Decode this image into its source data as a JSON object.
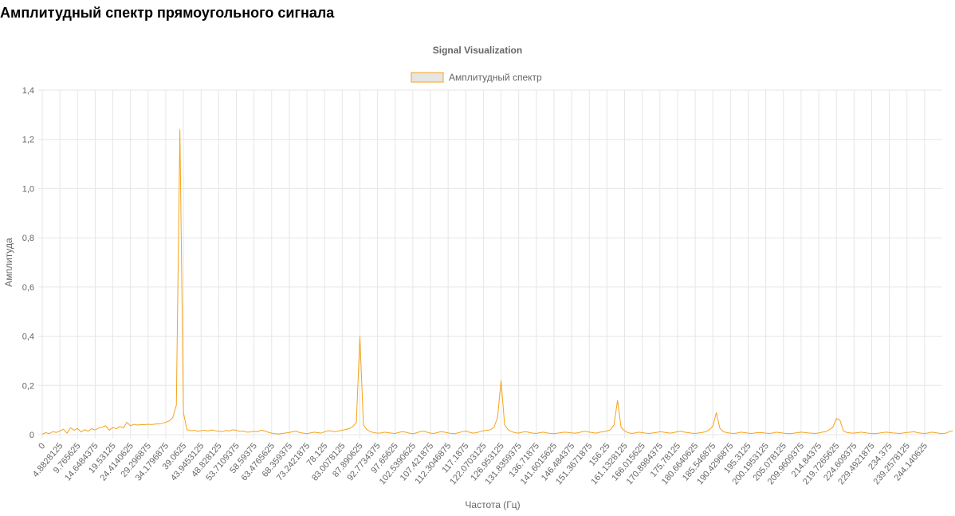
{
  "page": {
    "heading": "Амплитудный спектр прямоугольного сигнала"
  },
  "colors": {
    "series_line": "#f5a31a",
    "legend_fill": "#e5e5e5",
    "grid": "#e6e6e6",
    "text": "#666666"
  },
  "chart_data": {
    "type": "line",
    "title": "Signal Visualization",
    "xlabel": "Частота (Гц)",
    "ylabel": "Амплитуда",
    "legend_position": "top",
    "grid": true,
    "ylim": [
      0,
      1.4
    ],
    "y_ticks": [
      "0",
      "0,2",
      "0,4",
      "0,6",
      "0,8",
      "1,0",
      "1,2",
      "1,4"
    ],
    "x_step": 0.9765625,
    "x_count": 256,
    "x_tick_labels": [
      "0",
      "4.8828125",
      "9.765625",
      "14.6484375",
      "19.53125",
      "24.4140625",
      "29.296875",
      "34.1796875",
      "39.0625",
      "43.9453125",
      "48.828125",
      "53.7109375",
      "58.59375",
      "63.4765625",
      "68.359375",
      "73.2421875",
      "78.125",
      "83.0078125",
      "87.890625",
      "92.7734375",
      "97.65625",
      "102.5390625",
      "107.421875",
      "112.3046875",
      "117.1875",
      "122.0703125",
      "126.953125",
      "131.8359375",
      "136.71875",
      "141.6015625",
      "146.484375",
      "151.3671875",
      "156.25",
      "161.1328125",
      "166.015625",
      "170.8984375",
      "175.78125",
      "180.6640625",
      "185.546875",
      "190.4296875",
      "195.3125",
      "200.1953125",
      "205.078125",
      "209.9609375",
      "214.84375",
      "219.7265625",
      "224.609375",
      "229.4921875",
      "234.375",
      "239.2578125",
      "244.140625"
    ],
    "series": [
      {
        "name": "Амплитудный спектр",
        "values": [
          0.002,
          0.008,
          0.004,
          0.012,
          0.009,
          0.015,
          0.022,
          0.006,
          0.028,
          0.018,
          0.025,
          0.011,
          0.02,
          0.014,
          0.024,
          0.019,
          0.027,
          0.031,
          0.036,
          0.018,
          0.029,
          0.024,
          0.033,
          0.028,
          0.05,
          0.036,
          0.042,
          0.039,
          0.041,
          0.04,
          0.042,
          0.041,
          0.043,
          0.044,
          0.046,
          0.05,
          0.056,
          0.07,
          0.12,
          1.24,
          0.09,
          0.02,
          0.016,
          0.018,
          0.014,
          0.016,
          0.018,
          0.015,
          0.019,
          0.016,
          0.014,
          0.012,
          0.017,
          0.015,
          0.02,
          0.018,
          0.013,
          0.015,
          0.01,
          0.011,
          0.014,
          0.012,
          0.018,
          0.015,
          0.01,
          0.006,
          0.004,
          0.003,
          0.005,
          0.007,
          0.009,
          0.012,
          0.015,
          0.008,
          0.006,
          0.004,
          0.007,
          0.01,
          0.008,
          0.006,
          0.012,
          0.016,
          0.014,
          0.012,
          0.015,
          0.018,
          0.021,
          0.025,
          0.033,
          0.05,
          0.4,
          0.04,
          0.02,
          0.012,
          0.008,
          0.006,
          0.007,
          0.01,
          0.008,
          0.006,
          0.005,
          0.009,
          0.012,
          0.01,
          0.006,
          0.004,
          0.007,
          0.012,
          0.014,
          0.01,
          0.006,
          0.005,
          0.009,
          0.012,
          0.01,
          0.007,
          0.005,
          0.004,
          0.008,
          0.012,
          0.015,
          0.01,
          0.006,
          0.008,
          0.012,
          0.016,
          0.018,
          0.02,
          0.03,
          0.07,
          0.22,
          0.04,
          0.02,
          0.012,
          0.008,
          0.006,
          0.01,
          0.012,
          0.009,
          0.006,
          0.005,
          0.008,
          0.01,
          0.007,
          0.005,
          0.004,
          0.006,
          0.008,
          0.01,
          0.009,
          0.007,
          0.006,
          0.008,
          0.012,
          0.014,
          0.01,
          0.008,
          0.006,
          0.01,
          0.012,
          0.015,
          0.02,
          0.04,
          0.14,
          0.03,
          0.015,
          0.008,
          0.005,
          0.007,
          0.01,
          0.008,
          0.006,
          0.005,
          0.007,
          0.009,
          0.012,
          0.01,
          0.008,
          0.006,
          0.009,
          0.012,
          0.014,
          0.01,
          0.008,
          0.006,
          0.005,
          0.007,
          0.009,
          0.012,
          0.02,
          0.035,
          0.09,
          0.025,
          0.012,
          0.008,
          0.006,
          0.005,
          0.007,
          0.01,
          0.008,
          0.006,
          0.005,
          0.007,
          0.009,
          0.008,
          0.006,
          0.005,
          0.007,
          0.01,
          0.008,
          0.006,
          0.005,
          0.004,
          0.006,
          0.008,
          0.01,
          0.009,
          0.007,
          0.006,
          0.005,
          0.007,
          0.01,
          0.012,
          0.02,
          0.03,
          0.065,
          0.06,
          0.015,
          0.009,
          0.007,
          0.006,
          0.008,
          0.01,
          0.008,
          0.006,
          0.005,
          0.004,
          0.006,
          0.008,
          0.01,
          0.009,
          0.007,
          0.006,
          0.005,
          0.007,
          0.009,
          0.01,
          0.012,
          0.008,
          0.006,
          0.005,
          0.007,
          0.01,
          0.008,
          0.006,
          0.004,
          0.006,
          0.012,
          0.016
        ]
      }
    ]
  }
}
